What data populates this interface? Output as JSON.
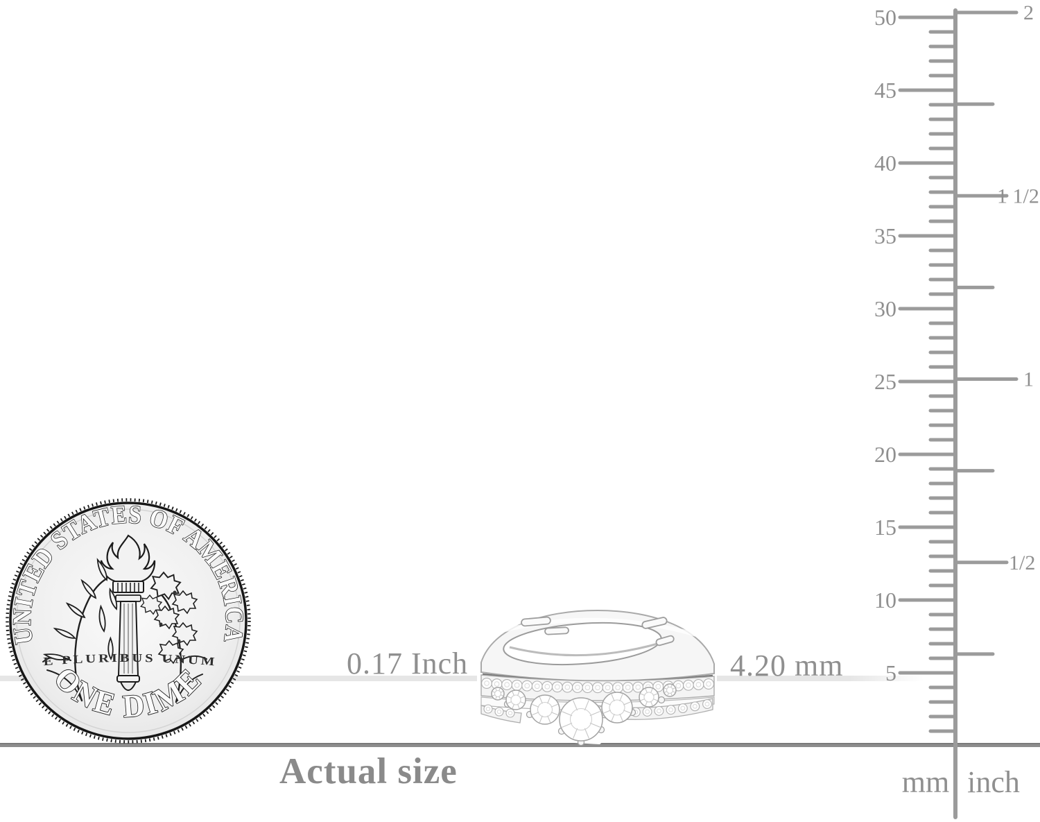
{
  "figure": {
    "actual_size_label": "Actual size",
    "background": "#ffffff"
  },
  "measurements": {
    "inch_label": "0.17 Inch",
    "mm_label": "4.20 mm"
  },
  "coin": {
    "top_text": "UNITED STATES OF AMERICA",
    "bottom_text": "ONE DIME",
    "motto_text": "E PLURIBUS UNUM"
  },
  "ruler": {
    "mm_tick_labels": [
      "50",
      "45",
      "40",
      "35",
      "30",
      "25",
      "20",
      "15",
      "10",
      "5"
    ],
    "inch_tick_labels": [
      "2",
      "1 1/2",
      "1",
      "1/2"
    ],
    "unit_labels": {
      "mm": "mm",
      "inch": "inch"
    },
    "colors": {
      "tick": "#9b9b9b",
      "label": "#8f8f8f"
    }
  },
  "lines": {
    "guide_line_color": "#e6e6e6",
    "baseline_color": "#8d8d8d"
  }
}
